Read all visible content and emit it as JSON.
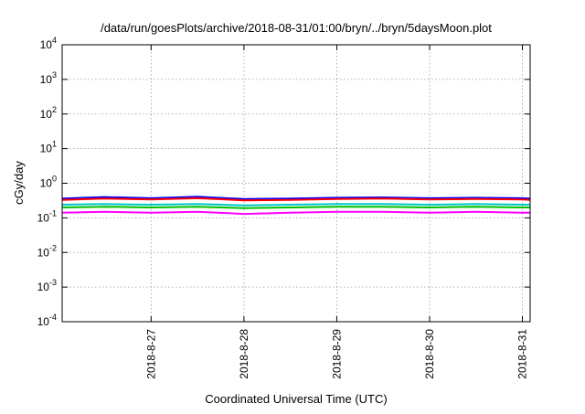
{
  "chart_data": {
    "type": "line",
    "title": "/data/run/goesPlots/archive/2018-08-31/01:00/bryn/../bryn/5daysMoon.plot",
    "xlabel": "Coordinated Universal Time (UTC)",
    "ylabel": "cGy/day",
    "yscale": "log",
    "ylim": [
      0.0001,
      10000
    ],
    "yticks": [
      {
        "base": "10",
        "exp": "4"
      },
      {
        "base": "10",
        "exp": "3"
      },
      {
        "base": "10",
        "exp": "2"
      },
      {
        "base": "10",
        "exp": "1"
      },
      {
        "base": "10",
        "exp": "0"
      },
      {
        "base": "10",
        "exp": "-1"
      },
      {
        "base": "10",
        "exp": "-2"
      },
      {
        "base": "10",
        "exp": "-3"
      },
      {
        "base": "10",
        "exp": "-4"
      }
    ],
    "xlim": [
      "2018-08-26 01:00",
      "2018-08-31 02:00"
    ],
    "xticks": [
      "2018-8-27",
      "2018-8-28",
      "2018-8-29",
      "2018-8-30",
      "2018-8-31"
    ],
    "grid": true,
    "x": [
      "2018-08-26 01:00",
      "2018-08-26 12:00",
      "2018-08-27 00:00",
      "2018-08-27 12:00",
      "2018-08-28 00:00",
      "2018-08-28 12:00",
      "2018-08-29 00:00",
      "2018-08-29 12:00",
      "2018-08-30 00:00",
      "2018-08-30 12:00",
      "2018-08-31 00:00",
      "2018-08-31 02:00"
    ],
    "series": [
      {
        "color": "#0000ff",
        "values": [
          0.36,
          0.4,
          0.37,
          0.41,
          0.35,
          0.36,
          0.38,
          0.39,
          0.37,
          0.38,
          0.37,
          0.36
        ]
      },
      {
        "color": "#ff0000",
        "values": [
          0.33,
          0.36,
          0.34,
          0.37,
          0.32,
          0.33,
          0.35,
          0.36,
          0.34,
          0.35,
          0.34,
          0.33
        ]
      },
      {
        "color": "#00c8c8",
        "values": [
          0.24,
          0.25,
          0.24,
          0.25,
          0.23,
          0.24,
          0.25,
          0.25,
          0.24,
          0.25,
          0.24,
          0.24
        ]
      },
      {
        "color": "#00c000",
        "values": [
          0.2,
          0.21,
          0.2,
          0.21,
          0.19,
          0.2,
          0.21,
          0.21,
          0.2,
          0.21,
          0.2,
          0.2
        ]
      },
      {
        "color": "#ff00ff",
        "values": [
          0.14,
          0.15,
          0.14,
          0.15,
          0.13,
          0.14,
          0.15,
          0.15,
          0.14,
          0.15,
          0.14,
          0.14
        ]
      }
    ]
  }
}
